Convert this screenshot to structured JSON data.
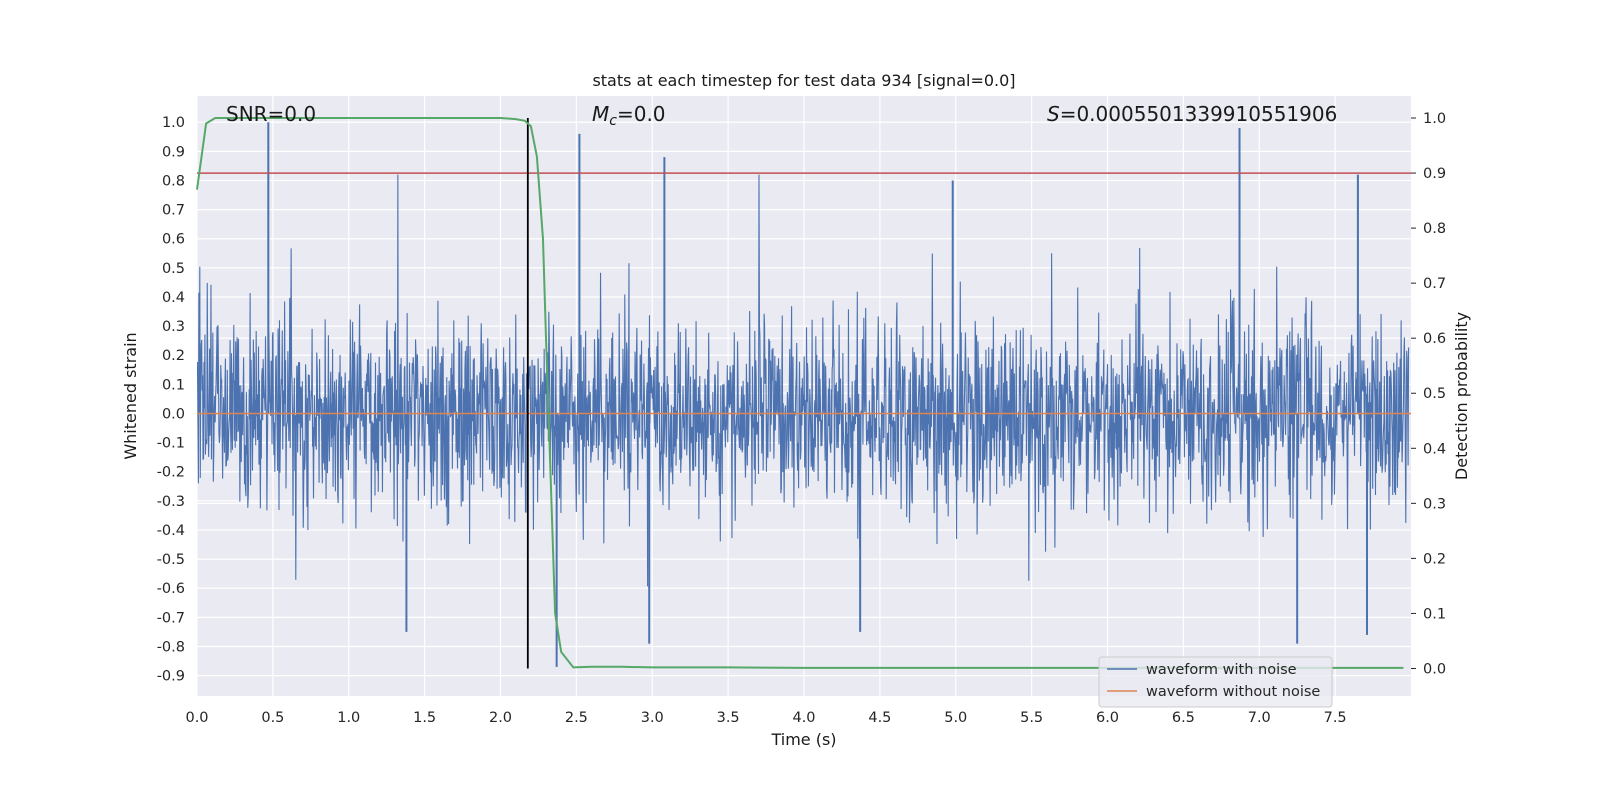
{
  "chart_data": {
    "type": "line",
    "title": "stats at each timestep for test data 934 [signal=0.0]",
    "xlabel": "Time (s)",
    "ylabel": "Whitened strain",
    "ylabel_right": "Detection probability",
    "xlim": [
      0.0,
      8.0
    ],
    "ylim": [
      -0.97,
      1.09
    ],
    "ylim_right": [
      -0.05,
      1.04
    ],
    "x_ticks": [
      "0.0",
      "0.5",
      "1.0",
      "1.5",
      "2.0",
      "2.5",
      "3.0",
      "3.5",
      "4.0",
      "4.5",
      "5.0",
      "5.5",
      "6.0",
      "6.5",
      "7.0",
      "7.5"
    ],
    "y_ticks": [
      "1.0",
      "0.9",
      "0.8",
      "0.7",
      "0.6",
      "0.5",
      "0.4",
      "0.3",
      "0.2",
      "0.1",
      "0.0",
      "-0.1",
      "-0.2",
      "-0.3",
      "-0.4",
      "-0.5",
      "-0.6",
      "-0.7",
      "-0.8",
      "-0.9"
    ],
    "y_ticks_right": [
      "1.0",
      "0.9",
      "0.8",
      "0.7",
      "0.6",
      "0.5",
      "0.4",
      "0.3",
      "0.2",
      "0.1",
      "0.0"
    ],
    "grid": true,
    "legend_position": "bottom-right",
    "annotations": {
      "snr": "SNR=0.0",
      "mc_symbol": "M",
      "mc_sub": "c",
      "mc_value": "=0.0",
      "s_symbol": "S",
      "s_value": "=0.0005501339910551906"
    },
    "series": [
      {
        "name": "waveform with noise",
        "color": "#4c72b0",
        "axis": "left",
        "description_values": "dense noise, mostly within about -0.45 to +0.45",
        "peaks": [
          {
            "x": 0.47,
            "y": 1.0
          },
          {
            "x": 2.52,
            "y": 0.96
          },
          {
            "x": 3.08,
            "y": 0.88
          },
          {
            "x": 4.98,
            "y": 0.8
          },
          {
            "x": 6.87,
            "y": 0.98
          },
          {
            "x": 7.65,
            "y": 0.82
          },
          {
            "x": 2.37,
            "y": -0.87
          },
          {
            "x": 2.98,
            "y": -0.79
          },
          {
            "x": 1.38,
            "y": -0.75
          },
          {
            "x": 7.25,
            "y": -0.79
          },
          {
            "x": 4.37,
            "y": -0.75
          },
          {
            "x": 7.71,
            "y": -0.76
          }
        ]
      },
      {
        "name": "waveform without noise",
        "color": "#dd8452",
        "axis": "left",
        "x": [
          0.0,
          8.0
        ],
        "y": [
          0.0,
          0.0
        ]
      },
      {
        "name": "",
        "color": "#55a868",
        "axis": "right",
        "x": [
          0.0,
          0.06,
          0.12,
          0.3,
          1.0,
          1.5,
          2.0,
          2.1,
          2.16,
          2.2,
          2.24,
          2.28,
          2.3,
          2.33,
          2.36,
          2.4,
          2.48,
          2.6,
          2.8,
          3.0,
          3.5,
          4.0,
          5.0,
          6.0,
          7.0,
          7.95
        ],
        "y": [
          0.87,
          0.99,
          1.0,
          1.0,
          1.0,
          1.0,
          1.0,
          0.998,
          0.995,
          0.985,
          0.93,
          0.78,
          0.6,
          0.35,
          0.1,
          0.03,
          0.002,
          0.003,
          0.003,
          0.002,
          0.002,
          0.001,
          0.001,
          0.001,
          0.001,
          0.001
        ]
      }
    ],
    "reference_lines": [
      {
        "type": "horizontal",
        "axis": "right",
        "value": 0.9,
        "color": "#c44e52"
      },
      {
        "type": "vertical",
        "value": 2.18,
        "color": "#000000"
      }
    ],
    "right_axis_grid": [
      0.6,
      0.5,
      0.3
    ]
  }
}
